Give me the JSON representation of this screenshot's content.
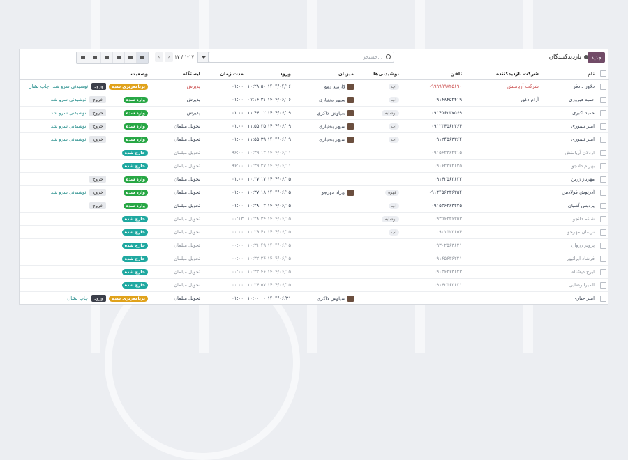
{
  "header": {
    "new_button": "جدید",
    "title": "بازدیدکنندگان",
    "search_placeholder": "جستجو...",
    "pager": "۱-۱۷ / ۱۷"
  },
  "table": {
    "columns": [
      "نام",
      "شرکت بازدیدکننده",
      "تلفن",
      "نوشیدنی‌ها",
      "میزبان",
      "ورود",
      "مدت زمان",
      "ایستگاه",
      "وضعیت"
    ],
    "rows": [
      {
        "name": "دلاور دادفر",
        "company": "شرکت آرپامنش",
        "phone": "۰۹۹۹۹۹۹۸۲۵۶۹۰",
        "drink": "اب",
        "host": "کارمند دمو",
        "check_in": "۱۴۰۴/۰۴/۱۶ ۱۰:۲۸:۵۰",
        "duration": "۰۱:۰۰",
        "station": "پذیرش",
        "status": "برنامه‌ریزی شده",
        "status_color": "#e0a21b",
        "highlight_color": "#c94a4a",
        "muted": false,
        "actions": [
          {
            "label": "ورود",
            "style": "dark"
          },
          {
            "label": "نوشیدنی سرو شد",
            "style": "link"
          },
          {
            "label": "چاپ نشان",
            "style": "link"
          }
        ]
      },
      {
        "name": "حمید فیروزی",
        "company": "آرام دکور",
        "phone": "۰۹۱۴۸۴۵۲۴۱۹",
        "drink": "اب",
        "host": "سپهر بختیاری",
        "check_in": "۱۴۰۴/۰۶/۰۶ ۰۷:۱۶:۳۱",
        "duration": "۰۱:۰۰",
        "station": "پذیرش",
        "status": "وارد شده",
        "status_color": "#28a745",
        "muted": false,
        "actions": [
          {
            "label": "خروج",
            "style": "light"
          },
          {
            "label": "نوشیدنی سرو شد",
            "style": "link"
          }
        ]
      },
      {
        "name": "حمید اکبری",
        "company": null,
        "phone": "۰۹۱۴۵۶۲۳۷۵۶۹",
        "drink": "نوشابه",
        "host": "سیاوش ذاکری",
        "check_in": "۱۴۰۴/۰۶/۰۹ ۱۱:۴۴:۰۲",
        "duration": "۰۱:۰۰",
        "station": "پذیرش",
        "status": "وارد شده",
        "status_color": "#28a745",
        "muted": false,
        "actions": [
          {
            "label": "خروج",
            "style": "light"
          },
          {
            "label": "نوشیدنی سرو شد",
            "style": "link"
          }
        ]
      },
      {
        "name": "امیر تیموری",
        "company": null,
        "phone": "۰۹۱۲۳۴۵۶۲۳۶۴",
        "drink": "اب",
        "host": "سپهر بختیاری",
        "check_in": "۱۴۰۴/۰۶/۰۹ ۱۱:۵۵:۳۵",
        "duration": "۰۱:۰۰",
        "station": "تحویل میلمان",
        "status": "وارد شده",
        "status_color": "#28a745",
        "muted": false,
        "actions": [
          {
            "label": "خروج",
            "style": "light"
          },
          {
            "label": "نوشیدنی سرو شد",
            "style": "link"
          }
        ]
      },
      {
        "name": "امیر تیموری",
        "company": null,
        "phone": "۰۹۱۲۴۵۶۳۳۶۴",
        "drink": "اب",
        "host": "سپهر بختیاری",
        "check_in": "۱۴۰۴/۰۶/۰۹ ۱۱:۵۵:۳۹",
        "duration": "۰۱:۰۰",
        "station": "تحویل میلمان",
        "status": "وارد شده",
        "status_color": "#28a745",
        "muted": false,
        "actions": [
          {
            "label": "خروج",
            "style": "light"
          },
          {
            "label": "نوشیدنی سرو شد",
            "style": "link"
          }
        ]
      },
      {
        "name": "اردلان آرپامنش",
        "company": null,
        "phone": "۰۹۱۵۶۲۳۶۲۲۱۵",
        "drink": null,
        "host": null,
        "check_in": "۱۴۰۴/۰۶/۱۱ ۱۰:۳۹:۱۲",
        "duration": "۹۶:۰۰",
        "station": "تحویل میلمان",
        "status": "خارج شده",
        "status_color": "#1fa8a0",
        "muted": true,
        "actions": []
      },
      {
        "name": "بهرام دادجو",
        "company": null,
        "phone": "۰۹۰۶۲۳۶۲۶۳۵",
        "drink": null,
        "host": null,
        "check_in": "۱۴۰۴/۰۶/۱۱ ۱۰:۳۹:۲۷",
        "duration": "۹۶:۰۰",
        "station": "تحویل میلمان",
        "status": "خارج شده",
        "status_color": "#1fa8a0",
        "muted": true,
        "actions": []
      },
      {
        "name": "مهرناز زرین",
        "company": null,
        "phone": "۰۹۱۴۲۵۶۳۶۲۳",
        "drink": null,
        "host": null,
        "check_in": "۱۴۰۴/۰۶/۱۵ ۱۰:۳۷:۱۷",
        "duration": "۰۱:۰۰",
        "station": "تحویل میلمان",
        "status": "وارد شده",
        "status_color": "#28a745",
        "muted": false,
        "actions": [
          {
            "label": "خروج",
            "style": "light"
          }
        ]
      },
      {
        "name": "آذرنوش فولادبین",
        "company": null,
        "phone": "۰۹۱۲۴۵۶۲۳۶۳۵۴",
        "drink": "قهوه",
        "host": "بهزاد مهرجو",
        "check_in": "۱۴۰۴/۰۶/۱۵ ۱۰:۳۷:۱۸",
        "duration": "۰۱:۰۰",
        "station": "تحویل میلمان",
        "status": "وارد شده",
        "status_color": "#28a745",
        "muted": false,
        "actions": [
          {
            "label": "خروج",
            "style": "light"
          },
          {
            "label": "نوشیدنی سرو شد",
            "style": "link"
          }
        ]
      },
      {
        "name": "پردیس آشیان",
        "company": null,
        "phone": "۰۹۱۵۳۶۲۶۳۲۲۵",
        "drink": "اب",
        "host": null,
        "check_in": "۱۴۰۴/۰۶/۱۵ ۱۰:۲۸:۰۲",
        "duration": "۰۱:۰۰",
        "station": "تحویل میلمان",
        "status": "وارد شده",
        "status_color": "#28a745",
        "muted": false,
        "actions": [
          {
            "label": "خروج",
            "style": "light"
          }
        ]
      },
      {
        "name": "شبنم دانجو",
        "company": null,
        "phone": "۰۹۳۵۶۲۳۶۳۵۳",
        "drink": "نوشابه",
        "host": null,
        "check_in": "۱۴۰۴/۰۶/۱۵ ۱۰:۲۸:۳۴",
        "duration": "۰۰:۱۳",
        "station": "تحویل میلمان",
        "status": "خارج شده",
        "status_color": "#1fa8a0",
        "muted": true,
        "actions": []
      },
      {
        "name": "نریمان مهرجو",
        "company": null,
        "phone": "۰۹۰۱۵۲۳۶۵۴",
        "drink": "اب",
        "host": null,
        "check_in": "۱۴۰۴/۰۶/۱۵ ۱۰:۲۹:۴۱",
        "duration": "۰۰:۰۰",
        "station": "تحویل میلمان",
        "status": "خارج شده",
        "status_color": "#1fa8a0",
        "muted": true,
        "actions": []
      },
      {
        "name": "پرویز زروان",
        "company": null,
        "phone": "۰۹۳۰۲۵۶۳۶۲۱",
        "drink": null,
        "host": null,
        "check_in": "۱۴۰۴/۰۶/۱۵ ۱۰:۳۱:۴۹",
        "duration": "۰۰:۰۰",
        "station": "تحویل میلمان",
        "status": "خارج شده",
        "status_color": "#1fa8a0",
        "muted": true,
        "actions": []
      },
      {
        "name": "فرشاد ابراتپور",
        "company": null,
        "phone": "۰۹۱۴۵۶۳۶۲۲۱",
        "drink": null,
        "host": null,
        "check_in": "۱۴۰۴/۰۶/۱۵ ۱۰:۳۲:۲۴",
        "duration": "۰۰:۰۰",
        "station": "تحویل میلمان",
        "status": "خارج شده",
        "status_color": "#1fa8a0",
        "muted": true,
        "actions": []
      },
      {
        "name": "ایرج دیشناه",
        "company": null,
        "phone": "۰۹۰۳۶۲۶۳۶۲۳",
        "drink": null,
        "host": null,
        "check_in": "۱۴۰۴/۰۶/۱۵ ۱۰:۳۲:۴۶",
        "duration": "۰۰:۰۰",
        "station": "تحویل میلمان",
        "status": "خارج شده",
        "status_color": "#1fa8a0",
        "muted": true,
        "actions": []
      },
      {
        "name": "المیرا رضایی",
        "company": null,
        "phone": "۰۹۱۴۲۵۶۳۶۲۱",
        "drink": null,
        "host": null,
        "check_in": "۱۴۰۴/۰۶/۱۵ ۱۰:۳۴:۵۷",
        "duration": "۰۰:۰۰",
        "station": "تحویل میلمان",
        "status": "خارج شده",
        "status_color": "#1fa8a0",
        "muted": true,
        "actions": []
      },
      {
        "name": "امیر جباری",
        "company": null,
        "phone": null,
        "drink": null,
        "host": "سیاوش ذاکری",
        "check_in": "۱۴۰۴/۰۶/۳۱ ۱۰:۰۰:۰۰",
        "duration": "۰۱:۰۰",
        "station": "تحویل میلمان",
        "status": "برنامه‌ریزی شده",
        "status_color": "#e0a21b",
        "muted": false,
        "actions": [
          {
            "label": "ورود",
            "style": "dark"
          },
          {
            "label": "چاپ نشان",
            "style": "link"
          }
        ]
      }
    ]
  }
}
